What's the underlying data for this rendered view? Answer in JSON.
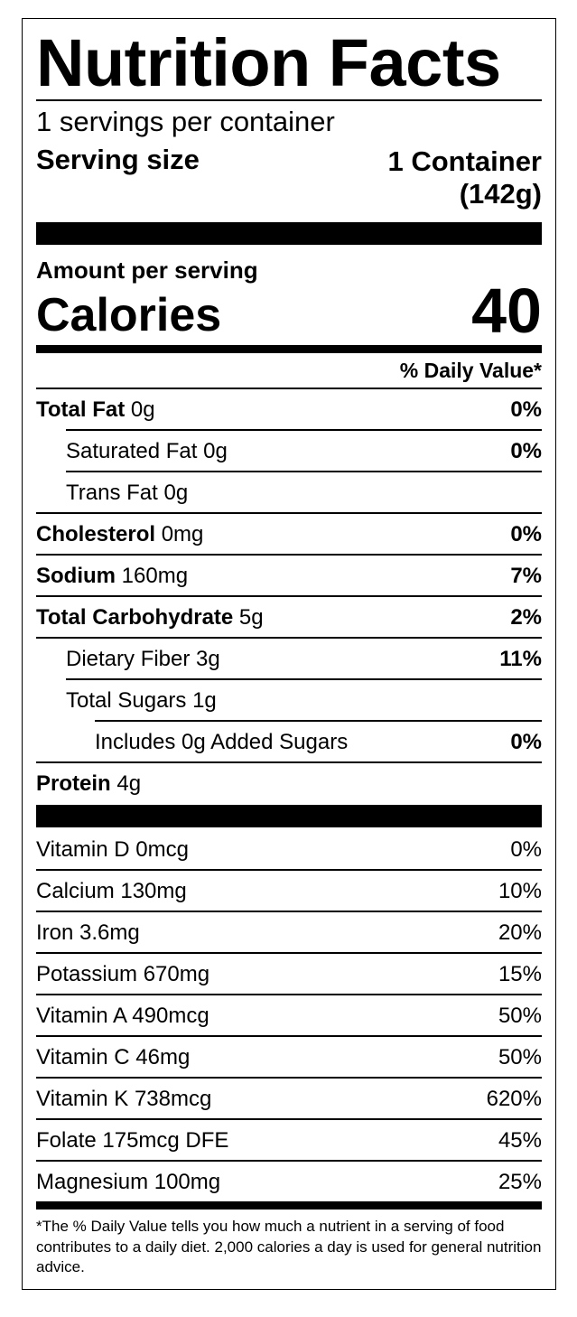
{
  "title": "Nutrition Facts",
  "servings_per_container": "1 servings per container",
  "serving_size": {
    "label": "Serving size",
    "value_line1": "1 Container",
    "value_line2": "(142g)"
  },
  "amount_per_serving": "Amount per serving",
  "calories": {
    "label": "Calories",
    "value": "40"
  },
  "daily_value_header": "% Daily Value*",
  "nutrients": [
    {
      "name": "Total Fat",
      "amount": "0g",
      "dv": "0%"
    },
    {
      "name": "Saturated Fat",
      "amount": "0g",
      "dv": "0%"
    },
    {
      "name": "Trans Fat",
      "amount": "0g",
      "dv": ""
    },
    {
      "name": "Cholesterol",
      "amount": "0mg",
      "dv": "0%"
    },
    {
      "name": "Sodium",
      "amount": "160mg",
      "dv": "7%"
    },
    {
      "name": "Total Carbohydrate",
      "amount": "5g",
      "dv": "2%"
    },
    {
      "name": "Dietary Fiber",
      "amount": "3g",
      "dv": "11%"
    },
    {
      "name": "Total Sugars",
      "amount": "1g",
      "dv": ""
    },
    {
      "name": "Includes 0g Added Sugars",
      "amount": "",
      "dv": "0%"
    },
    {
      "name": "Protein",
      "amount": "4g",
      "dv": ""
    }
  ],
  "vitamins": [
    {
      "name": "Vitamin D 0mcg",
      "dv": "0%"
    },
    {
      "name": "Calcium 130mg",
      "dv": "10%"
    },
    {
      "name": "Iron 3.6mg",
      "dv": "20%"
    },
    {
      "name": "Potassium 670mg",
      "dv": "15%"
    },
    {
      "name": "Vitamin A 490mcg",
      "dv": "50%"
    },
    {
      "name": "Vitamin C 46mg",
      "dv": "50%"
    },
    {
      "name": "Vitamin K 738mcg",
      "dv": "620%"
    },
    {
      "name": "Folate 175mcg DFE",
      "dv": "45%"
    },
    {
      "name": "Magnesium 100mg",
      "dv": "25%"
    }
  ],
  "footnote": "*The % Daily Value tells you how much a nutrient in a serving of food contributes to a daily diet. 2,000 calories a day is used for general nutrition advice."
}
